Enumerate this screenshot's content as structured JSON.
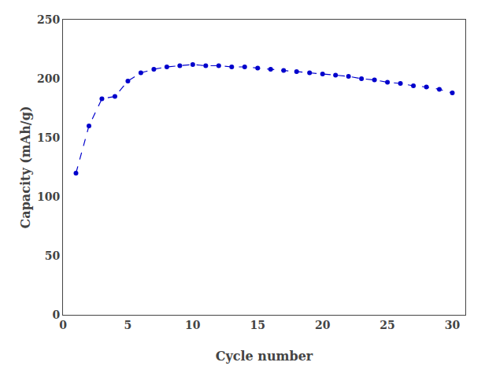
{
  "chart_data": {
    "type": "line",
    "x": [
      1,
      2,
      3,
      4,
      5,
      6,
      7,
      8,
      9,
      10,
      11,
      12,
      13,
      14,
      15,
      16,
      17,
      18,
      19,
      20,
      21,
      22,
      23,
      24,
      25,
      26,
      27,
      28,
      29,
      30
    ],
    "values": [
      120,
      160,
      183,
      185,
      198,
      205,
      208,
      210,
      211,
      212,
      211,
      211,
      210,
      210,
      209,
      208,
      207,
      206,
      205,
      204,
      203,
      202,
      200,
      199,
      197,
      196,
      194,
      193,
      191,
      188
    ],
    "color": "#0000CC",
    "marker": "circle",
    "line_style": "dashed",
    "xlabel": "Cycle number",
    "ylabel": "Capacity (mAh/g)",
    "xlim": [
      0,
      31
    ],
    "ylim": [
      0,
      250
    ],
    "xticks": [
      0,
      5,
      10,
      15,
      20,
      25,
      30
    ],
    "yticks": [
      0,
      50,
      100,
      150,
      200,
      250
    ],
    "grid": false
  }
}
